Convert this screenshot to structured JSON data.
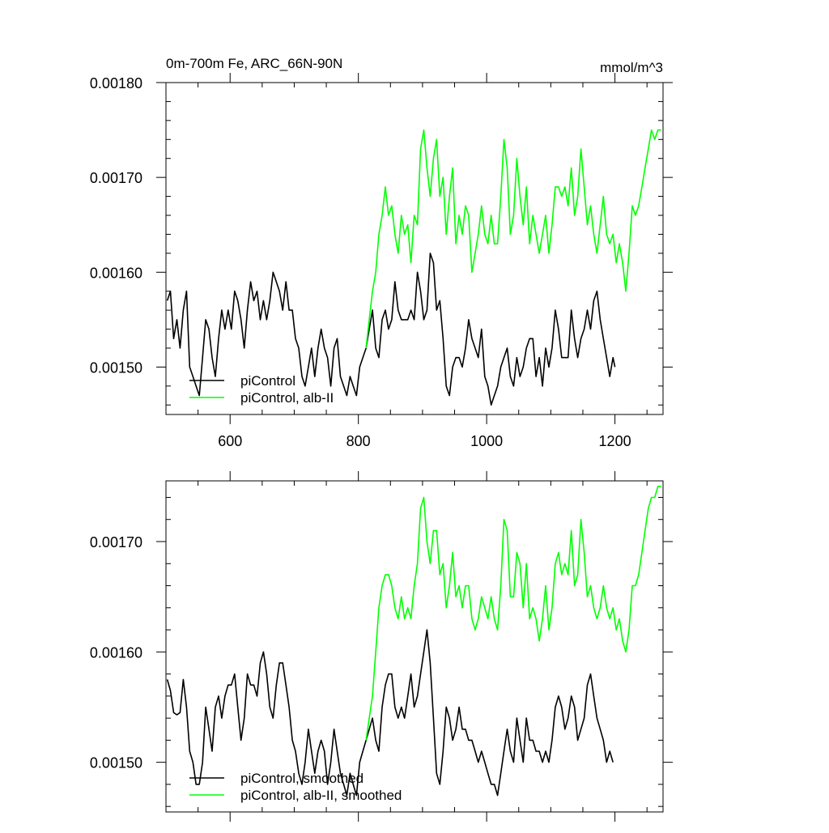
{
  "chart_data": [
    {
      "type": "line",
      "title": "0m-700m Fe, ARC_66N-90N",
      "units": "mmol/m^3",
      "xlim": [
        500,
        1275
      ],
      "ylim": [
        0.00145,
        0.0018
      ],
      "xticks": [
        600,
        800,
        1000,
        1200
      ],
      "xtick_labels": [
        "600",
        "800",
        "1000",
        "1200"
      ],
      "yticks": [
        0.0015,
        0.0016,
        0.0017,
        0.0018
      ],
      "ytick_labels": [
        "0.00150",
        "0.00160",
        "0.00170",
        "0.00180"
      ],
      "legend": {
        "placement": "bottom-left",
        "labels": [
          "piControl",
          "piControl, alb-II"
        ]
      },
      "series": [
        {
          "name": "piControl",
          "color": "#000000",
          "x": [
            502,
            507,
            512,
            517,
            522,
            527,
            532,
            537,
            542,
            547,
            552,
            557,
            562,
            567,
            572,
            577,
            582,
            587,
            592,
            597,
            602,
            607,
            612,
            617,
            622,
            627,
            632,
            637,
            642,
            647,
            652,
            657,
            662,
            667,
            672,
            677,
            682,
            687,
            692,
            697,
            702,
            707,
            712,
            717,
            722,
            727,
            732,
            737,
            742,
            747,
            752,
            757,
            762,
            767,
            772,
            777,
            782,
            787,
            792,
            797,
            802,
            807,
            812,
            817,
            822,
            827,
            832,
            837,
            842,
            847,
            852,
            857,
            862,
            867,
            872,
            877,
            882,
            887,
            892,
            897,
            902,
            907,
            912,
            917,
            922,
            927,
            932,
            937,
            942,
            947,
            952,
            957,
            962,
            967,
            972,
            977,
            982,
            987,
            992,
            997,
            1002,
            1007,
            1012,
            1017,
            1022,
            1027,
            1032,
            1037,
            1042,
            1047,
            1052,
            1057,
            1062,
            1067,
            1072,
            1077,
            1082,
            1087,
            1092,
            1097,
            1102,
            1107,
            1112,
            1117,
            1122,
            1127,
            1132,
            1137,
            1142,
            1147,
            1152,
            1157,
            1162,
            1167,
            1172,
            1177,
            1182,
            1187,
            1192,
            1197,
            1200
          ],
          "values": [
            0.00157,
            0.00158,
            0.00153,
            0.00155,
            0.00152,
            0.00156,
            0.00158,
            0.0015,
            0.00149,
            0.00148,
            0.00147,
            0.00151,
            0.00155,
            0.00154,
            0.00151,
            0.00149,
            0.00153,
            0.00156,
            0.00154,
            0.00156,
            0.00154,
            0.00158,
            0.00157,
            0.00155,
            0.00152,
            0.00156,
            0.00159,
            0.00157,
            0.00158,
            0.00155,
            0.00157,
            0.00155,
            0.00157,
            0.0016,
            0.00159,
            0.00158,
            0.00156,
            0.00159,
            0.00156,
            0.00156,
            0.00153,
            0.00152,
            0.00149,
            0.00148,
            0.0015,
            0.00152,
            0.00149,
            0.00152,
            0.00154,
            0.00152,
            0.00151,
            0.00148,
            0.00152,
            0.00153,
            0.00149,
            0.00148,
            0.00147,
            0.00149,
            0.00148,
            0.00147,
            0.0015,
            0.00151,
            0.00152,
            0.00154,
            0.00156,
            0.00152,
            0.00151,
            0.00155,
            0.00156,
            0.00154,
            0.00155,
            0.00159,
            0.00156,
            0.00155,
            0.00155,
            0.00155,
            0.00156,
            0.00155,
            0.0016,
            0.00158,
            0.00155,
            0.00156,
            0.00162,
            0.00161,
            0.00156,
            0.00157,
            0.00153,
            0.00148,
            0.00147,
            0.0015,
            0.00151,
            0.00151,
            0.0015,
            0.00152,
            0.00155,
            0.00153,
            0.00152,
            0.00151,
            0.00154,
            0.00149,
            0.00148,
            0.00146,
            0.00147,
            0.00148,
            0.0015,
            0.00151,
            0.00152,
            0.00149,
            0.00148,
            0.00151,
            0.00149,
            0.0015,
            0.00152,
            0.00153,
            0.00153,
            0.00149,
            0.00151,
            0.00148,
            0.00152,
            0.0015,
            0.00152,
            0.00156,
            0.00154,
            0.00151,
            0.00151,
            0.00151,
            0.00156,
            0.00153,
            0.00151,
            0.00153,
            0.00154,
            0.00156,
            0.00154,
            0.00157,
            0.00158,
            0.00155,
            0.00153,
            0.00151,
            0.00149,
            0.00151,
            0.0015
          ]
        },
        {
          "name": "piControl, alb-II",
          "color": "#00ff00",
          "x": [
            812,
            817,
            822,
            827,
            832,
            837,
            842,
            847,
            852,
            857,
            862,
            867,
            872,
            877,
            882,
            887,
            892,
            897,
            902,
            907,
            912,
            917,
            922,
            927,
            932,
            937,
            942,
            947,
            952,
            957,
            962,
            967,
            972,
            977,
            982,
            987,
            992,
            997,
            1002,
            1007,
            1012,
            1017,
            1022,
            1027,
            1032,
            1037,
            1042,
            1047,
            1052,
            1057,
            1062,
            1067,
            1072,
            1077,
            1082,
            1087,
            1092,
            1097,
            1102,
            1107,
            1112,
            1117,
            1122,
            1127,
            1132,
            1137,
            1142,
            1147,
            1152,
            1157,
            1162,
            1167,
            1172,
            1177,
            1182,
            1187,
            1192,
            1197,
            1202,
            1207,
            1212,
            1217,
            1222,
            1227,
            1232,
            1237,
            1242,
            1247,
            1252,
            1257,
            1262,
            1267,
            1272
          ],
          "values": [
            0.00152,
            0.00155,
            0.00158,
            0.0016,
            0.00164,
            0.00166,
            0.00169,
            0.00166,
            0.00167,
            0.00164,
            0.00162,
            0.00166,
            0.00164,
            0.00165,
            0.00161,
            0.00166,
            0.00165,
            0.00173,
            0.00175,
            0.00171,
            0.00168,
            0.00172,
            0.00174,
            0.00168,
            0.0017,
            0.00164,
            0.00168,
            0.00171,
            0.00163,
            0.00166,
            0.00164,
            0.00167,
            0.00166,
            0.0016,
            0.00162,
            0.00164,
            0.00167,
            0.00164,
            0.00163,
            0.00166,
            0.00163,
            0.00163,
            0.00168,
            0.00174,
            0.00171,
            0.00164,
            0.00166,
            0.00172,
            0.00168,
            0.00165,
            0.00169,
            0.00163,
            0.00166,
            0.00164,
            0.00162,
            0.00164,
            0.00166,
            0.00162,
            0.00165,
            0.00169,
            0.00169,
            0.00168,
            0.00169,
            0.00167,
            0.00171,
            0.00166,
            0.00168,
            0.00173,
            0.00169,
            0.00165,
            0.00167,
            0.00164,
            0.00162,
            0.00165,
            0.00168,
            0.00164,
            0.00163,
            0.00164,
            0.00161,
            0.00163,
            0.00161,
            0.00158,
            0.00162,
            0.00167,
            0.00166,
            0.00167,
            0.00169,
            0.00171,
            0.00173,
            0.00175,
            0.00174,
            0.00175,
            0.00175
          ]
        }
      ]
    },
    {
      "type": "line",
      "title": "",
      "units": "",
      "xlim": [
        500,
        1275
      ],
      "ylim": [
        0.001455,
        0.001755
      ],
      "xticks": [
        600,
        800,
        1000,
        1200
      ],
      "xtick_labels": [],
      "yticks": [
        0.0015,
        0.0016,
        0.0017
      ],
      "ytick_labels": [
        "0.00150",
        "0.00160",
        "0.00170"
      ],
      "legend": {
        "placement": "bottom-left",
        "labels": [
          "piControl, smoothed",
          "piControl, alb-II, smoothed"
        ]
      },
      "series": [
        {
          "name": "piControl, smoothed",
          "color": "#000000",
          "x": [
            502,
            507,
            512,
            517,
            522,
            527,
            532,
            537,
            542,
            547,
            552,
            557,
            562,
            567,
            572,
            577,
            582,
            587,
            592,
            597,
            602,
            607,
            612,
            617,
            622,
            627,
            632,
            637,
            642,
            647,
            652,
            657,
            662,
            667,
            672,
            677,
            682,
            687,
            692,
            697,
            702,
            707,
            712,
            717,
            722,
            727,
            732,
            737,
            742,
            747,
            752,
            757,
            762,
            767,
            772,
            777,
            782,
            787,
            792,
            797,
            802,
            807,
            812,
            817,
            822,
            827,
            832,
            837,
            842,
            847,
            852,
            857,
            862,
            867,
            872,
            877,
            882,
            887,
            892,
            897,
            902,
            907,
            912,
            917,
            922,
            927,
            932,
            937,
            942,
            947,
            952,
            957,
            962,
            967,
            972,
            977,
            982,
            987,
            992,
            997,
            1002,
            1007,
            1012,
            1017,
            1022,
            1027,
            1032,
            1037,
            1042,
            1047,
            1052,
            1057,
            1062,
            1067,
            1072,
            1077,
            1082,
            1087,
            1092,
            1097,
            1102,
            1107,
            1112,
            1117,
            1122,
            1127,
            1132,
            1137,
            1142,
            1147,
            1152,
            1157,
            1162,
            1167,
            1172,
            1177,
            1182,
            1187,
            1192,
            1197
          ],
          "values": [
            0.001575,
            0.001565,
            0.001545,
            0.001543,
            0.001545,
            0.001575,
            0.00155,
            0.00151,
            0.0015,
            0.00148,
            0.00148,
            0.0015,
            0.00155,
            0.00153,
            0.00151,
            0.00155,
            0.00156,
            0.00154,
            0.00156,
            0.00157,
            0.00157,
            0.00158,
            0.00155,
            0.00152,
            0.00154,
            0.00158,
            0.00157,
            0.00157,
            0.00156,
            0.00159,
            0.0016,
            0.00158,
            0.00155,
            0.00154,
            0.00157,
            0.00159,
            0.00159,
            0.00157,
            0.00155,
            0.00152,
            0.00151,
            0.00149,
            0.00148,
            0.0015,
            0.00153,
            0.00151,
            0.00149,
            0.00151,
            0.00152,
            0.00151,
            0.00148,
            0.0015,
            0.00153,
            0.00151,
            0.00149,
            0.00148,
            0.00147,
            0.00149,
            0.00148,
            0.00147,
            0.0015,
            0.00151,
            0.00152,
            0.00153,
            0.00154,
            0.00152,
            0.00151,
            0.00155,
            0.00157,
            0.00158,
            0.00158,
            0.00155,
            0.00154,
            0.00155,
            0.00154,
            0.00156,
            0.00158,
            0.00155,
            0.00156,
            0.00158,
            0.0016,
            0.00162,
            0.00159,
            0.00154,
            0.00149,
            0.00148,
            0.00151,
            0.00155,
            0.00154,
            0.00152,
            0.00153,
            0.00155,
            0.00153,
            0.00153,
            0.00152,
            0.00152,
            0.00151,
            0.0015,
            0.00151,
            0.0015,
            0.00149,
            0.00148,
            0.00148,
            0.00147,
            0.00149,
            0.00151,
            0.00153,
            0.00151,
            0.0015,
            0.00154,
            0.00152,
            0.0015,
            0.00154,
            0.00152,
            0.00152,
            0.00151,
            0.00151,
            0.0015,
            0.00151,
            0.0015,
            0.00152,
            0.00155,
            0.00156,
            0.00155,
            0.00153,
            0.00154,
            0.00156,
            0.00155,
            0.00152,
            0.00153,
            0.00154,
            0.00157,
            0.00158,
            0.00156,
            0.00154,
            0.00153,
            0.00152,
            0.0015,
            0.00151,
            0.0015
          ]
        },
        {
          "name": "piControl, alb-II, smoothed",
          "color": "#00ff00",
          "x": [
            812,
            817,
            822,
            827,
            832,
            837,
            842,
            847,
            852,
            857,
            862,
            867,
            872,
            877,
            882,
            887,
            892,
            897,
            902,
            907,
            912,
            917,
            922,
            927,
            932,
            937,
            942,
            947,
            952,
            957,
            962,
            967,
            972,
            977,
            982,
            987,
            992,
            997,
            1002,
            1007,
            1012,
            1017,
            1022,
            1027,
            1032,
            1037,
            1042,
            1047,
            1052,
            1057,
            1062,
            1067,
            1072,
            1077,
            1082,
            1087,
            1092,
            1097,
            1102,
            1107,
            1112,
            1117,
            1122,
            1127,
            1132,
            1137,
            1142,
            1147,
            1152,
            1157,
            1162,
            1167,
            1172,
            1177,
            1182,
            1187,
            1192,
            1197,
            1202,
            1207,
            1212,
            1217,
            1222,
            1227,
            1232,
            1237,
            1242,
            1247,
            1252,
            1257,
            1262,
            1267,
            1272
          ],
          "values": [
            0.00152,
            0.00154,
            0.00156,
            0.0016,
            0.00164,
            0.00166,
            0.00167,
            0.00167,
            0.00166,
            0.00164,
            0.00163,
            0.00165,
            0.00163,
            0.00164,
            0.00163,
            0.00166,
            0.00168,
            0.00173,
            0.00174,
            0.0017,
            0.00168,
            0.00171,
            0.00171,
            0.00167,
            0.00168,
            0.00164,
            0.00166,
            0.00169,
            0.00165,
            0.00166,
            0.00164,
            0.00166,
            0.00166,
            0.00163,
            0.00162,
            0.00163,
            0.00165,
            0.00164,
            0.00163,
            0.00165,
            0.00163,
            0.00162,
            0.00166,
            0.00172,
            0.00171,
            0.00165,
            0.00165,
            0.00169,
            0.00168,
            0.00164,
            0.00168,
            0.00163,
            0.00164,
            0.00163,
            0.00161,
            0.00163,
            0.00166,
            0.00162,
            0.00164,
            0.00168,
            0.00169,
            0.00167,
            0.00168,
            0.00167,
            0.00171,
            0.00166,
            0.00167,
            0.00172,
            0.00169,
            0.00165,
            0.00166,
            0.00164,
            0.00163,
            0.00164,
            0.00166,
            0.00164,
            0.00163,
            0.00164,
            0.00162,
            0.00163,
            0.00161,
            0.0016,
            0.00162,
            0.00166,
            0.00166,
            0.00167,
            0.00169,
            0.00171,
            0.00173,
            0.00174,
            0.00174,
            0.00175,
            0.00175
          ]
        }
      ]
    }
  ]
}
